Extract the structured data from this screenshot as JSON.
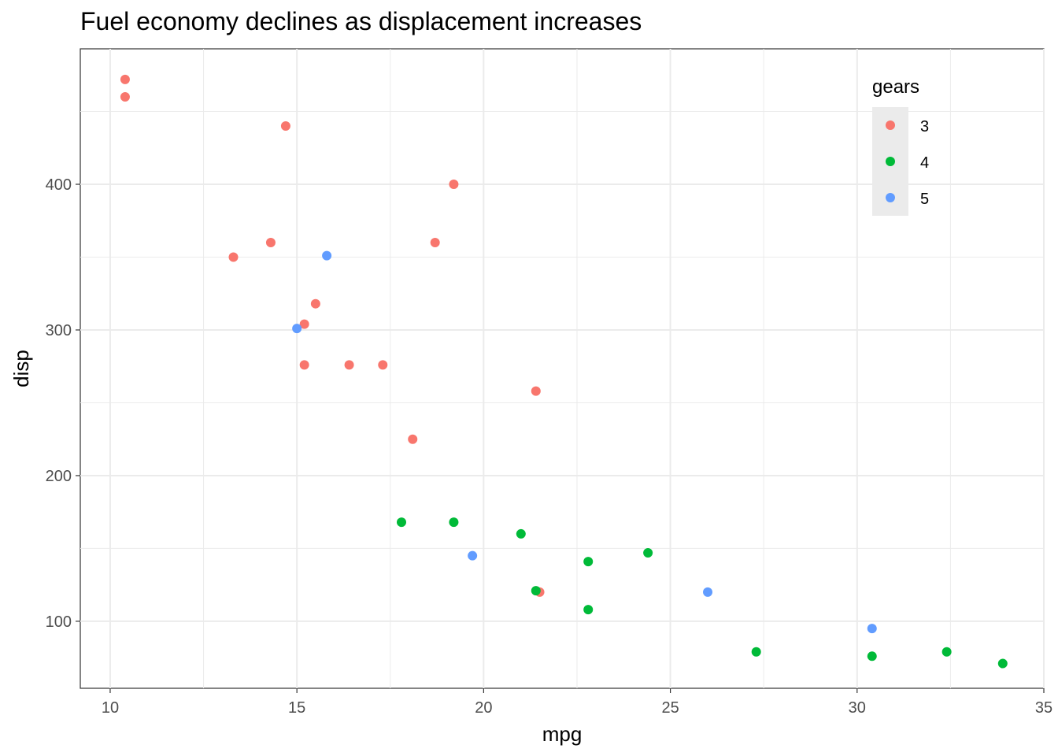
{
  "chart_data": {
    "type": "scatter",
    "title": "Fuel economy declines as displacement increases",
    "xlabel": "mpg",
    "ylabel": "disp",
    "xlim": [
      9.2,
      35
    ],
    "ylim": [
      54,
      493
    ],
    "xticks": [
      10,
      15,
      20,
      25,
      30,
      35
    ],
    "yticks": [
      100,
      200,
      300,
      400
    ],
    "grid": true,
    "legend": {
      "title": "gears",
      "placement": "top-right inside",
      "entries": [
        "3",
        "4",
        "5"
      ]
    },
    "colors": {
      "3": "#F8766D",
      "4": "#00BA38",
      "5": "#619CFF"
    },
    "series": [
      {
        "name": "3",
        "x": [
          10.4,
          10.4,
          14.7,
          19.2,
          13.3,
          14.3,
          18.7,
          15.5,
          15.2,
          15.2,
          16.4,
          17.3,
          21.4,
          18.1,
          21.5
        ],
        "y": [
          472,
          460,
          440,
          400,
          350,
          360,
          360,
          318,
          304,
          276,
          276,
          276,
          258,
          225,
          120
        ]
      },
      {
        "name": "4",
        "x": [
          17.8,
          19.2,
          21.0,
          22.8,
          24.4,
          21.4,
          22.8,
          27.3,
          30.4,
          32.4,
          33.9
        ],
        "y": [
          168,
          168,
          160,
          141,
          147,
          121,
          108,
          79,
          76,
          79,
          71
        ]
      },
      {
        "name": "5",
        "x": [
          15.8,
          15.0,
          19.7,
          26.0,
          30.4
        ],
        "y": [
          351,
          301,
          145,
          120,
          95
        ]
      }
    ]
  }
}
